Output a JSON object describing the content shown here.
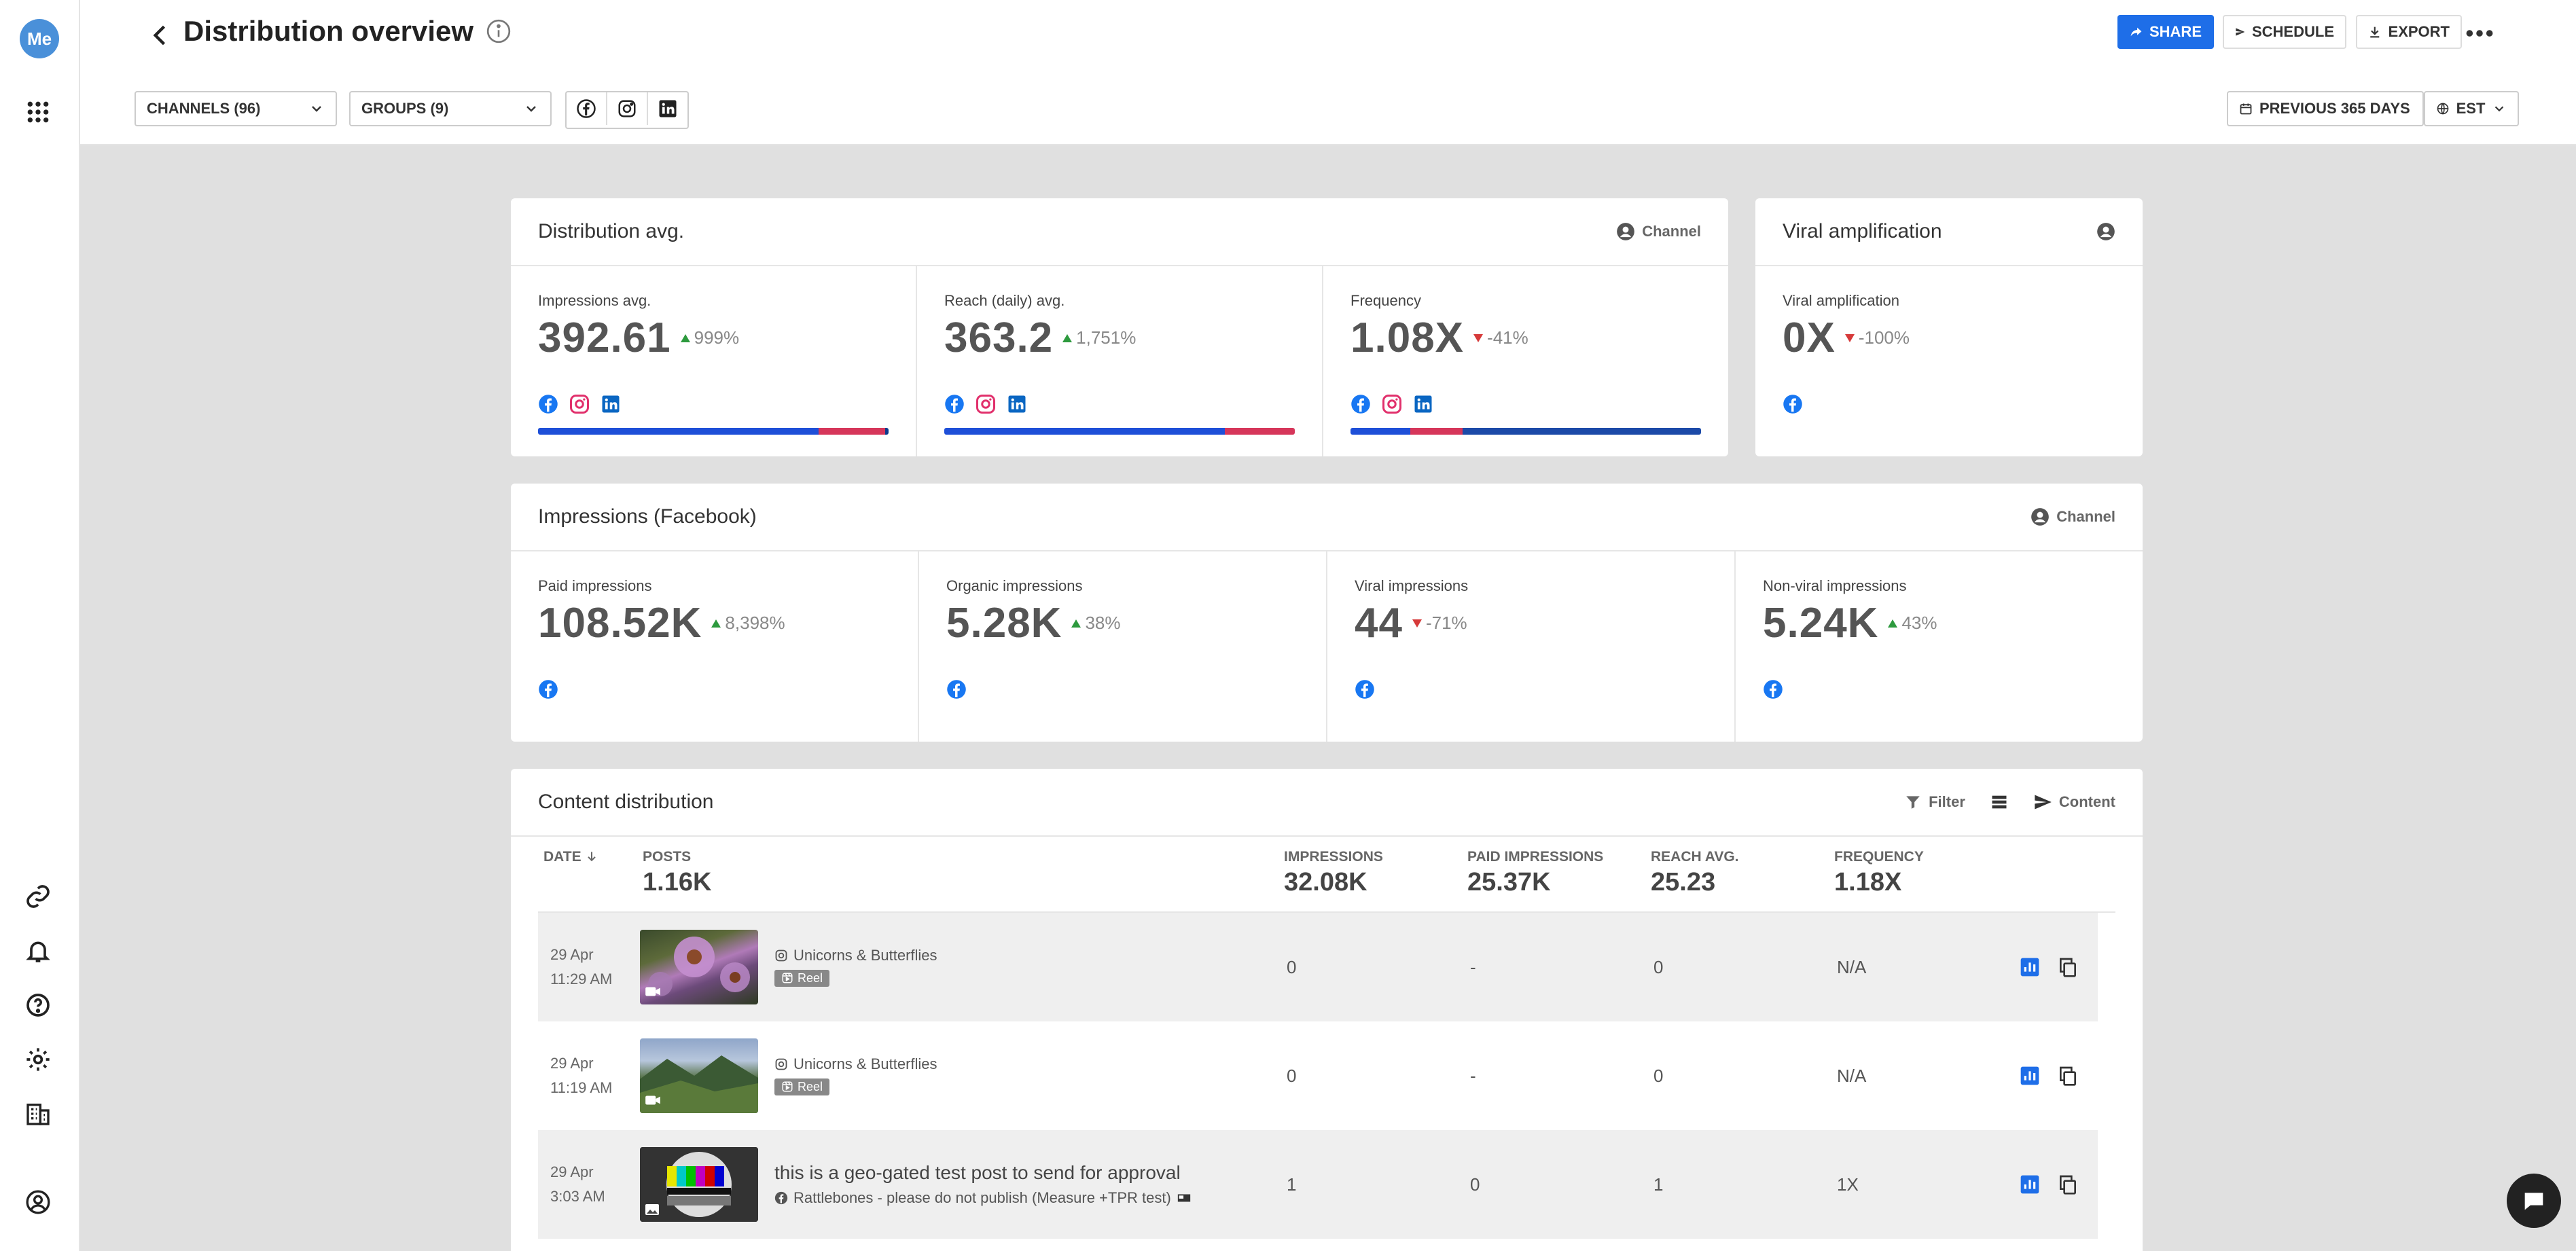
{
  "app": {
    "logo_text": "Me"
  },
  "sidebar": {
    "icons": [
      "grid-icon",
      "link-icon",
      "bell-icon",
      "help-icon",
      "settings-icon",
      "buildings-icon",
      "profile-icon"
    ]
  },
  "header": {
    "title": "Distribution overview",
    "share_label": "SHARE",
    "schedule_label": "SCHEDULE",
    "export_label": "EXPORT"
  },
  "filters": {
    "channels_label": "CHANNELS (96)",
    "groups_label": "GROUPS (9)",
    "networks": [
      "facebook-icon",
      "instagram-icon",
      "linkedin-icon"
    ],
    "date_range_label": "PREVIOUS 365 DAYS",
    "timezone_label": "EST"
  },
  "distribution": {
    "title": "Distribution avg.",
    "action_label": "Channel",
    "metrics": [
      {
        "label": "Impressions avg.",
        "value": "392.61",
        "change": "999%",
        "direction": "up",
        "bar": [
          0.8,
          0.19,
          0.01
        ]
      },
      {
        "label": "Reach (daily) avg.",
        "value": "363.2",
        "change": "1,751%",
        "direction": "up",
        "bar": [
          0.8,
          0.2
        ]
      },
      {
        "label": "Frequency",
        "value": "1.08X",
        "change": "-41%",
        "direction": "down",
        "bar": [
          0.17,
          0.15,
          0.68
        ]
      }
    ]
  },
  "viral": {
    "title": "Viral amplification",
    "metric": {
      "label": "Viral amplification",
      "value": "0X",
      "change": "-100%",
      "direction": "down"
    }
  },
  "impressions_fb": {
    "title": "Impressions (Facebook)",
    "action_label": "Channel",
    "metrics": [
      {
        "label": "Paid impressions",
        "value": "108.52K",
        "change": "8,398%",
        "direction": "up"
      },
      {
        "label": "Organic impressions",
        "value": "5.28K",
        "change": "38%",
        "direction": "up"
      },
      {
        "label": "Viral impressions",
        "value": "44",
        "change": "-71%",
        "direction": "down"
      },
      {
        "label": "Non-viral impressions",
        "value": "5.24K",
        "change": "43%",
        "direction": "up"
      }
    ]
  },
  "content": {
    "title": "Content distribution",
    "filter_label": "Filter",
    "content_label": "Content",
    "columns": {
      "date": "DATE",
      "posts": "POSTS",
      "posts_total": "1.16K",
      "impressions": "IMPRESSIONS",
      "impressions_total": "32.08K",
      "paid": "PAID IMPRESSIONS",
      "paid_total": "25.37K",
      "reach": "REACH AVG.",
      "reach_total": "25.23",
      "frequency": "FREQUENCY",
      "frequency_total": "1.18X"
    },
    "rows": [
      {
        "date": "29 Apr",
        "time": "11:29 AM",
        "channel": "Unicorns & Butterflies",
        "tag": "Reel",
        "text": "",
        "impressions": "0",
        "paid": "-",
        "reach": "0",
        "frequency": "N/A"
      },
      {
        "date": "29 Apr",
        "time": "11:19 AM",
        "channel": "Unicorns & Butterflies",
        "tag": "Reel",
        "text": "",
        "impressions": "0",
        "paid": "-",
        "reach": "0",
        "frequency": "N/A"
      },
      {
        "date": "29 Apr",
        "time": "3:03 AM",
        "channel": "Rattlebones - please do not publish (Measure +TPR test)",
        "tag": "",
        "text": "this is a geo-gated test post to send for approval",
        "impressions": "1",
        "paid": "0",
        "reach": "1",
        "frequency": "1X"
      }
    ]
  },
  "colors": {
    "accent": "#1e6ee8",
    "facebook": "#1877f2",
    "instagram": "#e1306c",
    "linkedin": "#0a66c2",
    "bar_blue": "#1e4fd8",
    "bar_red": "#d6365a"
  }
}
